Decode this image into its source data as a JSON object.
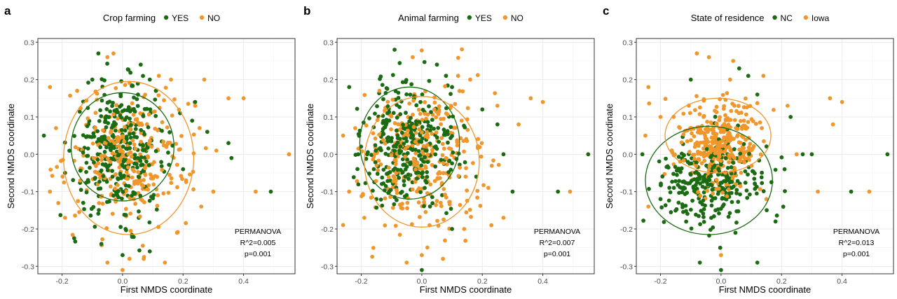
{
  "chart_data": [
    {
      "type": "scatter",
      "panel_letter": "a",
      "legend_title": "Crop farming",
      "legend_position": "top",
      "xlabel": "First NMDS coordinate",
      "ylabel": "Second NMDS coordinate",
      "xlim": [
        -0.28,
        0.57
      ],
      "ylim": [
        -0.32,
        0.31
      ],
      "x_ticks": [
        -0.2,
        0.0,
        0.2,
        0.4
      ],
      "x_tick_labels": [
        "-0.2",
        "0.0",
        "0.2",
        "0.4"
      ],
      "y_ticks": [
        -0.3,
        -0.2,
        -0.1,
        0.0,
        0.1,
        0.2,
        0.3
      ],
      "y_tick_labels": [
        "-0.3",
        "-0.2",
        "-0.1",
        "0.0",
        "0.1",
        "0.2",
        "0.3"
      ],
      "grid": true,
      "annotation": [
        "PERMANOVA",
        "R^2=0.005",
        "p=0.001"
      ],
      "series": [
        {
          "name": "YES",
          "color": "#1a6b12",
          "ellipse": {
            "cx": 0.0,
            "cy": 0.02,
            "rx": 0.17,
            "ry": 0.145
          },
          "cluster": {
            "cx": -0.01,
            "cy": 0.01,
            "sx": 0.075,
            "sy": 0.085,
            "n": 340
          },
          "points": [
            [
              -0.26,
              0.05
            ],
            [
              -0.08,
              0.27
            ],
            [
              -0.1,
              0.2
            ],
            [
              0.06,
              0.24
            ],
            [
              0.09,
              0.2
            ],
            [
              0.01,
              -0.2
            ],
            [
              -0.07,
              -0.24
            ],
            [
              0.0,
              -0.27
            ],
            [
              0.36,
              -0.01
            ],
            [
              0.49,
              -0.1
            ],
            [
              0.19,
              0.11
            ],
            [
              0.23,
              0.09
            ],
            [
              0.35,
              0.03
            ],
            [
              0.09,
              -0.26
            ],
            [
              -0.13,
              -0.13
            ],
            [
              0.2,
              -0.04
            ],
            [
              0.11,
              0.17
            ],
            [
              0.28,
              0.06
            ],
            [
              -0.19,
              -0.05
            ],
            [
              0.24,
              0.14
            ]
          ]
        },
        {
          "name": "NO",
          "color": "#f0962a",
          "ellipse": {
            "cx": 0.02,
            "cy": -0.01,
            "rx": 0.215,
            "ry": 0.205
          },
          "cluster": {
            "cx": 0.02,
            "cy": -0.01,
            "sx": 0.1,
            "sy": 0.09,
            "n": 300
          },
          "points": [
            [
              -0.24,
              0.18
            ],
            [
              0.35,
              0.15
            ],
            [
              0.4,
              0.15
            ],
            [
              0.55,
              0.0
            ],
            [
              0.44,
              -0.1
            ],
            [
              -0.24,
              -0.1
            ],
            [
              -0.19,
              -0.17
            ],
            [
              -0.05,
              -0.29
            ],
            [
              0.07,
              -0.28
            ],
            [
              0.14,
              -0.29
            ],
            [
              0.3,
              -0.1
            ],
            [
              0.31,
              0.01
            ],
            [
              -0.05,
              0.26
            ],
            [
              -0.03,
              0.27
            ],
            [
              0.12,
              0.21
            ],
            [
              0.16,
              0.2
            ],
            [
              0.24,
              0.13
            ],
            [
              0.26,
              -0.14
            ],
            [
              0.18,
              -0.21
            ],
            [
              -0.22,
              0.07
            ],
            [
              -0.15,
              0.17
            ],
            [
              0.21,
              -0.07
            ],
            [
              0.0,
              -0.31
            ],
            [
              0.27,
              0.2
            ]
          ]
        }
      ]
    },
    {
      "type": "scatter",
      "panel_letter": "b",
      "legend_title": "Animal farming",
      "legend_position": "top",
      "xlabel": "First NMDS coordinate",
      "ylabel": "Second NMDS coordinate",
      "xlim": [
        -0.28,
        0.57
      ],
      "ylim": [
        -0.32,
        0.31
      ],
      "x_ticks": [
        -0.2,
        0.0,
        0.2,
        0.4
      ],
      "x_tick_labels": [
        "-0.2",
        "0.0",
        "0.2",
        "0.4"
      ],
      "y_ticks": [
        -0.3,
        -0.2,
        -0.1,
        0.0,
        0.1,
        0.2,
        0.3
      ],
      "y_tick_labels": [
        "-0.3",
        "-0.2",
        "-0.1",
        "0.0",
        "0.1",
        "0.2",
        "0.3"
      ],
      "grid": true,
      "annotation": [
        "PERMANOVA",
        "R^2=0.007",
        "p=0.001"
      ],
      "series": [
        {
          "name": "YES",
          "color": "#1a6b12",
          "ellipse": {
            "cx": -0.04,
            "cy": 0.03,
            "rx": 0.165,
            "ry": 0.15
          },
          "cluster": {
            "cx": -0.04,
            "cy": 0.02,
            "sx": 0.075,
            "sy": 0.085,
            "n": 330
          },
          "points": [
            [
              -0.24,
              0.18
            ],
            [
              -0.09,
              0.28
            ],
            [
              0.05,
              0.24
            ],
            [
              0.08,
              0.21
            ],
            [
              0.1,
              -0.2
            ],
            [
              0.0,
              -0.31
            ],
            [
              0.55,
              0.0
            ],
            [
              0.3,
              -0.1
            ],
            [
              0.45,
              -0.1
            ],
            [
              0.2,
              0.12
            ],
            [
              0.27,
              0.0
            ],
            [
              -0.21,
              0.0
            ],
            [
              -0.15,
              -0.12
            ],
            [
              0.18,
              -0.06
            ],
            [
              0.1,
              0.18
            ],
            [
              0.25,
              0.08
            ]
          ]
        },
        {
          "name": "NO",
          "color": "#f0962a",
          "ellipse": {
            "cx": 0.0,
            "cy": -0.02,
            "rx": 0.19,
            "ry": 0.175
          },
          "cluster": {
            "cx": 0.0,
            "cy": -0.01,
            "sx": 0.1,
            "sy": 0.09,
            "n": 310
          },
          "points": [
            [
              -0.26,
              0.05
            ],
            [
              0.36,
              0.15
            ],
            [
              0.4,
              0.14
            ],
            [
              0.49,
              -0.1
            ],
            [
              0.32,
              0.08
            ],
            [
              -0.24,
              -0.1
            ],
            [
              -0.19,
              -0.17
            ],
            [
              -0.05,
              -0.29
            ],
            [
              0.07,
              -0.28
            ],
            [
              0.14,
              -0.2
            ],
            [
              0.27,
              -0.17
            ],
            [
              -0.03,
              0.26
            ],
            [
              0.12,
              0.21
            ],
            [
              0.16,
              0.2
            ],
            [
              0.25,
              0.13
            ],
            [
              0.22,
              -0.09
            ],
            [
              -0.22,
              0.07
            ],
            [
              -0.14,
              0.17
            ],
            [
              0.0,
              -0.27
            ],
            [
              0.23,
              -0.19
            ]
          ]
        }
      ]
    },
    {
      "type": "scatter",
      "panel_letter": "c",
      "legend_title": "State of residence",
      "legend_position": "top",
      "xlabel": "First NMDS coordinate",
      "ylabel": "Second NMDS coordinate",
      "xlim": [
        -0.28,
        0.57
      ],
      "ylim": [
        -0.32,
        0.31
      ],
      "x_ticks": [
        -0.2,
        0.0,
        0.2,
        0.4
      ],
      "x_tick_labels": [
        "-0.2",
        "0.0",
        "0.2",
        "0.4"
      ],
      "y_ticks": [
        -0.3,
        -0.2,
        -0.1,
        0.0,
        0.1,
        0.2,
        0.3
      ],
      "y_tick_labels": [
        "-0.3",
        "-0.2",
        "-0.1",
        "0.0",
        "0.1",
        "0.2",
        "0.3"
      ],
      "grid": true,
      "annotation": [
        "PERMANOVA",
        "R^2=0.013",
        "p=0.001"
      ],
      "series": [
        {
          "name": "NC",
          "color": "#1a6b12",
          "ellipse": {
            "cx": -0.04,
            "cy": -0.07,
            "rx": 0.21,
            "ry": 0.145
          },
          "cluster": {
            "cx": -0.04,
            "cy": -0.08,
            "sx": 0.085,
            "sy": 0.06,
            "n": 290
          },
          "points": [
            [
              -0.26,
              0.0
            ],
            [
              -0.1,
              0.2
            ],
            [
              0.06,
              0.23
            ],
            [
              0.09,
              0.21
            ],
            [
              0.12,
              0.16
            ],
            [
              0.0,
              -0.31
            ],
            [
              -0.07,
              -0.29
            ],
            [
              0.12,
              -0.29
            ],
            [
              0.55,
              0.0
            ],
            [
              0.43,
              -0.1
            ],
            [
              0.23,
              0.1
            ],
            [
              0.27,
              0.0
            ],
            [
              0.3,
              0.0
            ],
            [
              -0.2,
              -0.12
            ],
            [
              0.18,
              -0.18
            ],
            [
              0.21,
              -0.04
            ]
          ]
        },
        {
          "name": "Iowa",
          "color": "#f0962a",
          "ellipse": {
            "cx": -0.01,
            "cy": 0.05,
            "rx": 0.175,
            "ry": 0.1
          },
          "cluster": {
            "cx": -0.01,
            "cy": 0.03,
            "sx": 0.07,
            "sy": 0.06,
            "n": 360
          },
          "points": [
            [
              -0.24,
              0.18
            ],
            [
              -0.25,
              0.05
            ],
            [
              -0.08,
              0.27
            ],
            [
              -0.04,
              0.26
            ],
            [
              0.04,
              0.25
            ],
            [
              0.36,
              0.15
            ],
            [
              0.4,
              0.14
            ],
            [
              0.37,
              0.08
            ],
            [
              0.49,
              -0.1
            ],
            [
              0.32,
              -0.1
            ],
            [
              -0.2,
              0.1
            ],
            [
              0.22,
              0.13
            ],
            [
              0.25,
              0.0
            ],
            [
              0.15,
              -0.12
            ],
            [
              0.0,
              -0.27
            ],
            [
              -0.24,
              -0.14
            ],
            [
              0.14,
              0.21
            ],
            [
              0.03,
              0.2
            ]
          ]
        }
      ]
    }
  ]
}
